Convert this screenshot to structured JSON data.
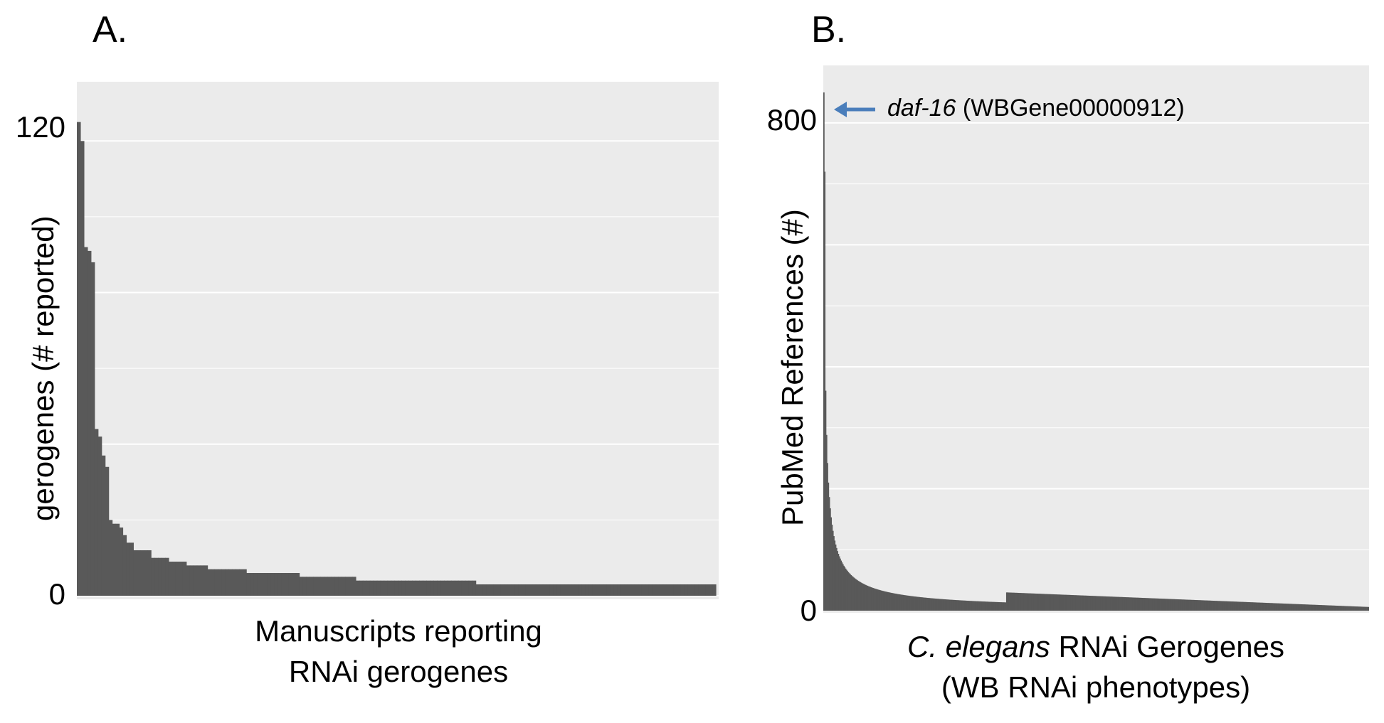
{
  "chart_data": [
    {
      "panel": "A.",
      "type": "bar",
      "ylabel": "gerogenes (# reported)",
      "xlabel_lines": [
        "Manuscripts reporting",
        "RNAi gerogenes"
      ],
      "yticks": [
        {
          "value": 0,
          "label": "0"
        },
        {
          "value": 120,
          "label": "120"
        }
      ],
      "ylim": [
        0,
        130
      ],
      "n_bars": 181,
      "values": [
        125,
        120,
        92,
        91,
        88,
        44,
        42,
        37,
        34,
        20,
        19,
        19,
        18,
        16,
        14,
        14,
        12,
        12,
        12,
        12,
        12,
        10,
        10,
        10,
        10,
        10,
        9,
        9,
        9,
        9,
        9,
        8,
        8,
        8,
        8,
        8,
        8,
        7,
        7,
        7,
        7,
        7,
        7,
        7,
        7,
        7,
        7,
        7,
        6,
        6,
        6,
        6,
        6,
        6,
        6,
        6,
        6,
        6,
        6,
        6,
        6,
        6,
        6,
        5,
        5,
        5,
        5,
        5,
        5,
        5,
        5,
        5,
        5,
        5,
        5,
        5,
        5,
        5,
        5,
        4,
        4,
        4,
        4,
        4,
        4,
        4,
        4,
        4,
        4,
        4,
        4,
        4,
        4,
        4,
        4,
        4,
        4,
        4,
        4,
        4,
        4,
        4,
        4,
        4,
        4,
        4,
        4,
        4,
        4,
        4,
        4,
        4,
        4,
        3,
        3,
        3,
        3,
        3,
        3,
        3,
        3,
        3,
        3,
        3,
        3,
        3,
        3,
        3,
        3,
        3,
        3,
        3,
        3,
        3,
        3,
        3,
        3,
        3,
        3,
        3,
        3,
        3,
        3,
        3,
        3,
        3,
        3,
        3,
        3,
        3,
        3,
        3,
        3,
        3,
        3,
        3,
        3,
        3,
        3,
        3,
        3,
        3,
        3,
        3,
        3,
        3,
        3,
        3,
        3,
        3,
        3,
        3,
        3,
        3,
        3,
        3,
        3,
        3,
        3,
        3,
        3
      ],
      "grid": true
    },
    {
      "panel": "B.",
      "type": "bar",
      "ylabel": "PubMed References (#)",
      "xlabel_italic": "C. elegans",
      "xlabel_rest": " RNAi Gerogenes",
      "xlabel_line2": "(WB RNAi phenotypes)",
      "yticks": [
        {
          "value": 0,
          "label": "0"
        },
        {
          "value": 800,
          "label": "800"
        }
      ],
      "ylim": [
        0,
        885
      ],
      "n_bars": 600,
      "max_value": 850,
      "annotation": {
        "gene": "daf-16",
        "id": " (WBGene00000912)"
      },
      "grid": true
    }
  ],
  "style": {
    "bar_color": "#595959",
    "panel_bg": "#ebebeb",
    "grid_color": "#ffffff",
    "arrow_color": "#4a7ebb"
  }
}
